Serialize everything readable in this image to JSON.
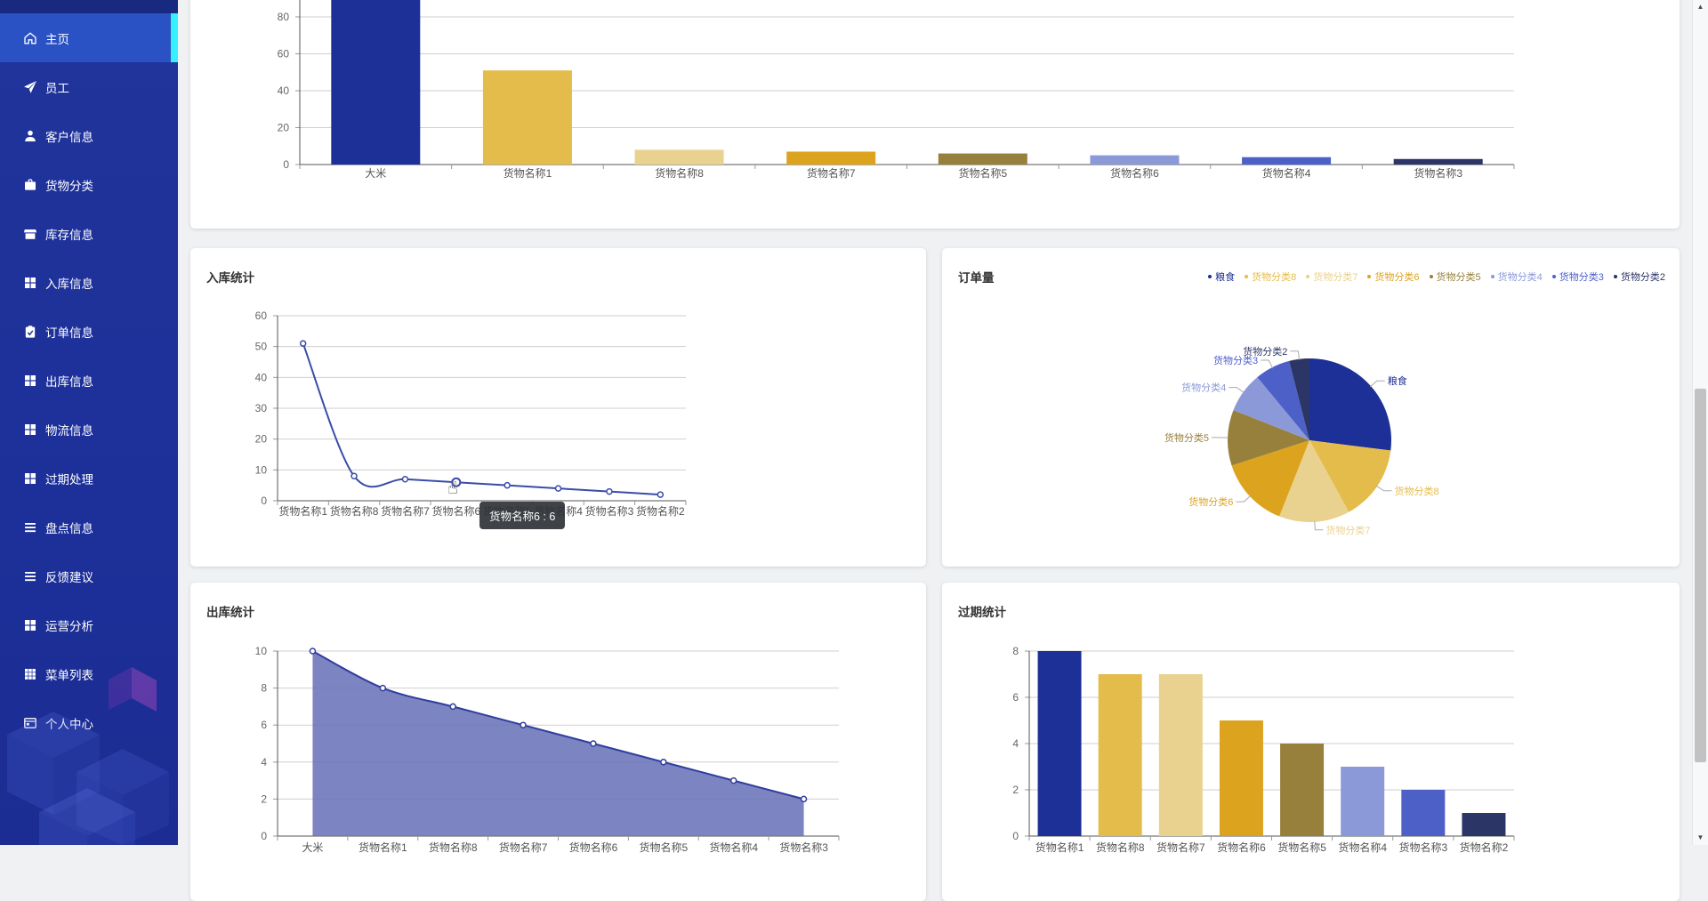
{
  "sidebar": {
    "active": "主页",
    "items": [
      {
        "label": "主页",
        "icon": "home"
      },
      {
        "label": "员工",
        "icon": "send"
      },
      {
        "label": "客户信息",
        "icon": "user"
      },
      {
        "label": "货物分类",
        "icon": "briefcase"
      },
      {
        "label": "库存信息",
        "icon": "store"
      },
      {
        "label": "入库信息",
        "icon": "grid"
      },
      {
        "label": "订单信息",
        "icon": "clipboard"
      },
      {
        "label": "出库信息",
        "icon": "grid"
      },
      {
        "label": "物流信息",
        "icon": "grid"
      },
      {
        "label": "过期处理",
        "icon": "grid"
      },
      {
        "label": "盘点信息",
        "icon": "list"
      },
      {
        "label": "反馈建议",
        "icon": "list"
      },
      {
        "label": "运营分析",
        "icon": "grid"
      },
      {
        "label": "菜单列表",
        "icon": "table"
      },
      {
        "label": "个人中心",
        "icon": "panel"
      }
    ]
  },
  "cards": {
    "inbound_title": "入库统计",
    "orders_title": "订单量",
    "outbound_title": "出库统计",
    "expired_title": "过期统计"
  },
  "tooltip": {
    "text": "货物名称6 : 6"
  },
  "cursor": {
    "glyph": "☝"
  },
  "scrollbar": {
    "up": "▲",
    "down": "▼"
  },
  "palette": [
    "#1D3097",
    "#E4BC4B",
    "#E9D28F",
    "#DCA41E",
    "#97803B",
    "#8C99D8",
    "#4D60C8",
    "#2B3566"
  ],
  "line_colors": {
    "line": "#3A4CA8",
    "area_line": "#2F3E9E",
    "area_fill": "#6A73B9"
  },
  "chart_data": [
    {
      "id": "stock-bar",
      "type": "bar",
      "title": "",
      "categories": [
        "大米",
        "货物名称1",
        "货物名称8",
        "货物名称7",
        "货物名称5",
        "货物名称6",
        "货物名称4",
        "货物名称3"
      ],
      "values": [
        100,
        51,
        8,
        7,
        6,
        5,
        4,
        3
      ],
      "ylim": [
        0,
        100
      ],
      "ytick": 20,
      "grid": true,
      "note": "top bar chart, upper part scrolled out of view"
    },
    {
      "id": "inbound-line",
      "type": "line",
      "title": "入库统计",
      "categories": [
        "货物名称1",
        "货物名称8",
        "货物名称7",
        "货物名称6",
        "货物名称5",
        "货物名称4",
        "货物名称3",
        "货物名称2"
      ],
      "values": [
        51,
        8,
        7,
        6,
        5,
        4,
        3,
        2
      ],
      "ylim": [
        0,
        60
      ],
      "ytick": 10,
      "grid": true,
      "hover_index": 3,
      "tooltip": "货物名称6 : 6"
    },
    {
      "id": "orders-pie",
      "type": "pie",
      "title": "订单量",
      "slices": [
        {
          "label": "粮食",
          "value": 27
        },
        {
          "label": "货物分类8",
          "value": 15
        },
        {
          "label": "货物分类7",
          "value": 14
        },
        {
          "label": "货物分类6",
          "value": 14
        },
        {
          "label": "货物分类5",
          "value": 11
        },
        {
          "label": "货物分类4",
          "value": 8
        },
        {
          "label": "货物分类3",
          "value": 7
        },
        {
          "label": "货物分类2",
          "value": 4
        }
      ],
      "legend_position": "top-right"
    },
    {
      "id": "outbound-area",
      "type": "area",
      "title": "出库统计",
      "categories": [
        "大米",
        "货物名称1",
        "货物名称8",
        "货物名称7",
        "货物名称6",
        "货物名称5",
        "货物名称4",
        "货物名称3"
      ],
      "values": [
        10,
        8,
        7,
        6,
        5,
        4,
        3,
        2
      ],
      "ylim": [
        0,
        10
      ],
      "ytick": 2,
      "grid": true,
      "note": "x labels clipped at bottom edge of viewport"
    },
    {
      "id": "expired-bar",
      "type": "bar",
      "title": "过期统计",
      "categories": [
        "货物名称1",
        "货物名称8",
        "货物名称7",
        "货物名称6",
        "货物名称5",
        "货物名称4",
        "货物名称3",
        "货物名称2"
      ],
      "values": [
        8,
        7,
        7,
        5,
        4,
        3,
        2,
        1
      ],
      "ylim": [
        0,
        8
      ],
      "ytick": 2,
      "grid": true,
      "note": "x labels clipped at bottom edge of viewport"
    }
  ]
}
